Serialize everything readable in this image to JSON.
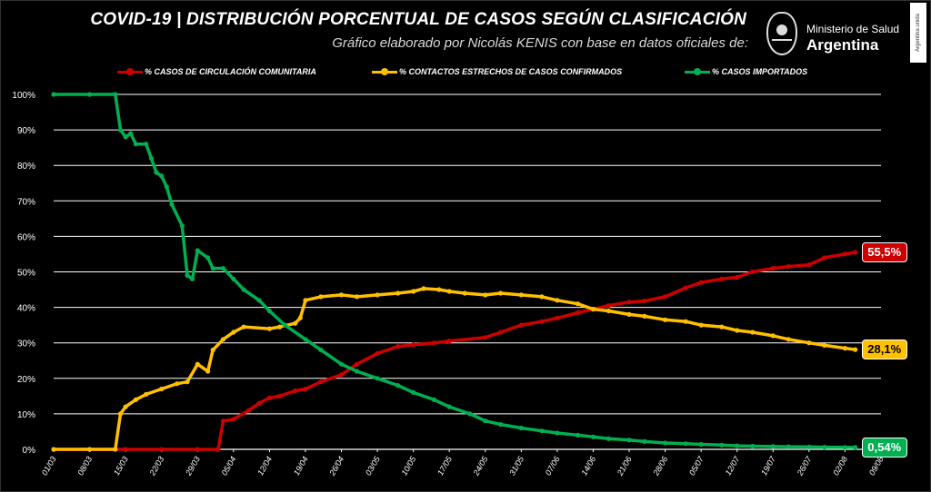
{
  "header": {
    "title": "COVID-19  |  DISTRIBUCIÓN PORCENTUAL DE CASOS SEGÚN CLASIFICACIÓN",
    "subtitle": "Gráfico elaborado por Nicolás KENIS con base en datos oficiales de:",
    "logo_ministry": "Ministerio de Salud",
    "logo_country": "Argentina",
    "side_badge": "Argentina unida"
  },
  "colors": {
    "comunitaria": "#cc0000",
    "contactos": "#ffc000",
    "importados": "#00b050",
    "grid": "#ffffff",
    "axis_text": "#ffffff"
  },
  "chart_data": {
    "type": "line",
    "x_start": "01/03",
    "x_end": "09/08",
    "x_tick_labels": [
      "01/03",
      "08/03",
      "15/03",
      "22/03",
      "29/03",
      "05/04",
      "12/04",
      "19/04",
      "26/04",
      "03/05",
      "10/05",
      "17/05",
      "24/05",
      "31/05",
      "07/06",
      "14/06",
      "21/06",
      "28/06",
      "05/07",
      "12/07",
      "19/07",
      "26/07",
      "02/08",
      "09/08"
    ],
    "y_tick_labels": [
      "0%",
      "10%",
      "20%",
      "30%",
      "40%",
      "50%",
      "60%",
      "70%",
      "80%",
      "90%",
      "100%"
    ],
    "ylim": [
      0,
      100
    ],
    "grid": true,
    "legend_position": "top",
    "series": [
      {
        "key": "comunitaria",
        "name": "% CASOS DE CIRCULACIÓN COMUNITARIA",
        "end_label": "55,5%",
        "points": [
          [
            "01/03",
            0
          ],
          [
            "08/03",
            0
          ],
          [
            "15/03",
            0
          ],
          [
            "22/03",
            0
          ],
          [
            "29/03",
            0
          ],
          [
            "02/04",
            0
          ],
          [
            "03/04",
            8
          ],
          [
            "05/04",
            8.5
          ],
          [
            "08/04",
            11
          ],
          [
            "10/04",
            13
          ],
          [
            "12/04",
            14.5
          ],
          [
            "14/04",
            15
          ],
          [
            "17/04",
            16.5
          ],
          [
            "19/04",
            17
          ],
          [
            "22/04",
            19
          ],
          [
            "26/04",
            21
          ],
          [
            "29/04",
            24
          ],
          [
            "03/05",
            27
          ],
          [
            "07/05",
            29
          ],
          [
            "10/05",
            29.5
          ],
          [
            "14/05",
            30
          ],
          [
            "17/05",
            30.5
          ],
          [
            "24/05",
            31.5
          ],
          [
            "27/05",
            33
          ],
          [
            "31/05",
            35
          ],
          [
            "04/06",
            36
          ],
          [
            "07/06",
            37
          ],
          [
            "11/06",
            38.5
          ],
          [
            "14/06",
            39.5
          ],
          [
            "17/06",
            40.5
          ],
          [
            "21/06",
            41.5
          ],
          [
            "24/06",
            41.8
          ],
          [
            "28/06",
            43
          ],
          [
            "02/07",
            45.5
          ],
          [
            "05/07",
            47
          ],
          [
            "09/07",
            48
          ],
          [
            "12/07",
            48.5
          ],
          [
            "15/07",
            50
          ],
          [
            "19/07",
            51
          ],
          [
            "22/07",
            51.5
          ],
          [
            "26/07",
            52
          ],
          [
            "29/07",
            54
          ],
          [
            "02/08",
            55
          ],
          [
            "04/08",
            55.5
          ]
        ]
      },
      {
        "key": "contactos",
        "name": "% CONTACTOS ESTRECHOS DE CASOS CONFIRMADOS",
        "end_label": "28,1%",
        "points": [
          [
            "01/03",
            0
          ],
          [
            "08/03",
            0
          ],
          [
            "13/03",
            0
          ],
          [
            "14/03",
            10
          ],
          [
            "15/03",
            12
          ],
          [
            "17/03",
            14
          ],
          [
            "19/03",
            15.5
          ],
          [
            "22/03",
            17
          ],
          [
            "25/03",
            18.5
          ],
          [
            "27/03",
            19
          ],
          [
            "29/03",
            24
          ],
          [
            "31/03",
            22
          ],
          [
            "01/04",
            28
          ],
          [
            "03/04",
            31
          ],
          [
            "05/04",
            33
          ],
          [
            "07/04",
            34.5
          ],
          [
            "12/04",
            34
          ],
          [
            "14/04",
            34.5
          ],
          [
            "17/04",
            35.5
          ],
          [
            "18/04",
            37
          ],
          [
            "19/04",
            42
          ],
          [
            "22/04",
            43
          ],
          [
            "26/04",
            43.5
          ],
          [
            "29/04",
            43
          ],
          [
            "03/05",
            43.5
          ],
          [
            "07/05",
            44
          ],
          [
            "10/05",
            44.5
          ],
          [
            "12/05",
            45.3
          ],
          [
            "15/05",
            45
          ],
          [
            "17/05",
            44.5
          ],
          [
            "20/05",
            44
          ],
          [
            "24/05",
            43.5
          ],
          [
            "27/05",
            44
          ],
          [
            "31/05",
            43.5
          ],
          [
            "04/06",
            43
          ],
          [
            "07/06",
            42
          ],
          [
            "11/06",
            41
          ],
          [
            "14/06",
            39.5
          ],
          [
            "17/06",
            39
          ],
          [
            "21/06",
            38
          ],
          [
            "24/06",
            37.5
          ],
          [
            "28/06",
            36.5
          ],
          [
            "02/07",
            36
          ],
          [
            "05/07",
            35
          ],
          [
            "09/07",
            34.5
          ],
          [
            "12/07",
            33.5
          ],
          [
            "15/07",
            33
          ],
          [
            "19/07",
            32
          ],
          [
            "22/07",
            31
          ],
          [
            "26/07",
            30
          ],
          [
            "29/07",
            29.3
          ],
          [
            "02/08",
            28.5
          ],
          [
            "04/08",
            28.1
          ]
        ]
      },
      {
        "key": "importados",
        "name": "% CASOS IMPORTADOS",
        "end_label": "0,54%",
        "points": [
          [
            "01/03",
            100
          ],
          [
            "08/03",
            100
          ],
          [
            "13/03",
            100
          ],
          [
            "14/03",
            90
          ],
          [
            "15/03",
            88
          ],
          [
            "16/03",
            89
          ],
          [
            "17/03",
            86
          ],
          [
            "19/03",
            86
          ],
          [
            "20/03",
            82
          ],
          [
            "21/03",
            78
          ],
          [
            "22/03",
            77
          ],
          [
            "23/03",
            74
          ],
          [
            "24/03",
            69
          ],
          [
            "26/03",
            63
          ],
          [
            "27/03",
            49
          ],
          [
            "28/03",
            48
          ],
          [
            "29/03",
            56
          ],
          [
            "31/03",
            54
          ],
          [
            "01/04",
            51
          ],
          [
            "03/04",
            51
          ],
          [
            "05/04",
            48
          ],
          [
            "07/04",
            45
          ],
          [
            "10/04",
            42
          ],
          [
            "12/04",
            39
          ],
          [
            "15/04",
            35
          ],
          [
            "19/04",
            31
          ],
          [
            "22/04",
            28
          ],
          [
            "26/04",
            24
          ],
          [
            "29/04",
            22
          ],
          [
            "03/05",
            20
          ],
          [
            "07/05",
            18
          ],
          [
            "10/05",
            16
          ],
          [
            "14/05",
            14
          ],
          [
            "17/05",
            12
          ],
          [
            "21/05",
            10
          ],
          [
            "24/05",
            8
          ],
          [
            "27/05",
            7
          ],
          [
            "31/05",
            6
          ],
          [
            "04/06",
            5.2
          ],
          [
            "07/06",
            4.6
          ],
          [
            "11/06",
            4
          ],
          [
            "14/06",
            3.5
          ],
          [
            "17/06",
            3
          ],
          [
            "21/06",
            2.6
          ],
          [
            "24/06",
            2.2
          ],
          [
            "28/06",
            1.8
          ],
          [
            "02/07",
            1.6
          ],
          [
            "05/07",
            1.4
          ],
          [
            "09/07",
            1.2
          ],
          [
            "12/07",
            1
          ],
          [
            "15/07",
            0.9
          ],
          [
            "19/07",
            0.8
          ],
          [
            "22/07",
            0.75
          ],
          [
            "26/07",
            0.7
          ],
          [
            "29/07",
            0.62
          ],
          [
            "02/08",
            0.56
          ],
          [
            "04/08",
            0.54
          ]
        ]
      }
    ]
  }
}
